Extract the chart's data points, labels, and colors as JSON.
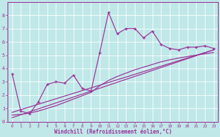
{
  "xlabel": "Windchill (Refroidissement éolien,°C)",
  "background_color": "#c0e8e8",
  "line_color": "#993399",
  "xlim": [
    -0.5,
    23.5
  ],
  "ylim": [
    0,
    9
  ],
  "xticks": [
    0,
    1,
    2,
    3,
    4,
    5,
    6,
    7,
    8,
    9,
    10,
    11,
    12,
    13,
    14,
    15,
    16,
    17,
    18,
    19,
    20,
    21,
    22,
    23
  ],
  "yticks": [
    0,
    1,
    2,
    3,
    4,
    5,
    6,
    7,
    8
  ],
  "series1_x": [
    0,
    1,
    2,
    3,
    4,
    5,
    6,
    7,
    8,
    9,
    10,
    11,
    12,
    13,
    14,
    15,
    16,
    17,
    18,
    19,
    20,
    21,
    22,
    23
  ],
  "series1_y": [
    3.6,
    0.8,
    0.6,
    1.5,
    2.8,
    3.0,
    2.9,
    3.5,
    2.5,
    2.3,
    5.2,
    8.2,
    6.6,
    7.0,
    7.0,
    6.3,
    6.8,
    5.8,
    5.5,
    5.4,
    5.6,
    5.6,
    5.7,
    5.5
  ],
  "line2_x": [
    0,
    23
  ],
  "line2_y": [
    0.3,
    5.4
  ],
  "line3_x": [
    0,
    23
  ],
  "line3_y": [
    0.7,
    5.4
  ],
  "curve4_x": [
    0,
    1,
    2,
    3,
    4,
    5,
    6,
    7,
    8,
    9,
    10,
    11,
    12,
    13,
    14,
    15,
    16,
    17,
    18,
    19,
    20,
    21,
    22,
    23
  ],
  "curve4_y": [
    0.5,
    0.55,
    0.65,
    0.8,
    1.0,
    1.2,
    1.45,
    1.7,
    1.95,
    2.2,
    2.7,
    3.1,
    3.4,
    3.65,
    3.9,
    4.1,
    4.3,
    4.5,
    4.65,
    4.78,
    4.9,
    5.0,
    5.1,
    5.2
  ]
}
